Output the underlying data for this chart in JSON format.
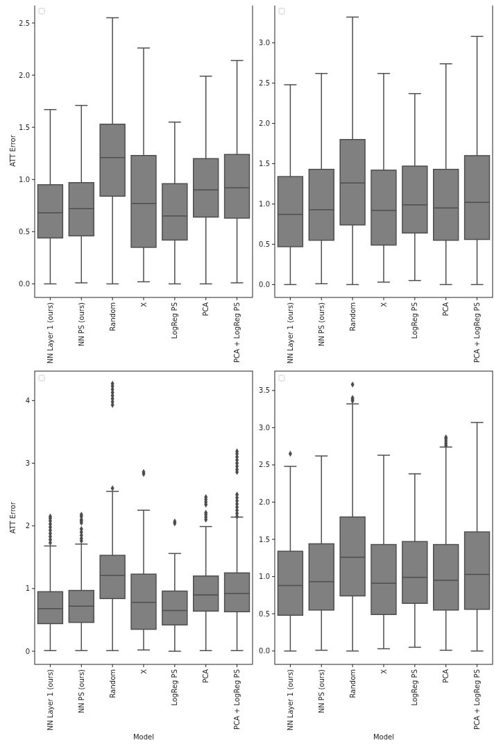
{
  "chart_data": [
    {
      "type": "box",
      "ylabel": "ATT Error",
      "categories": [
        "NN Layer 1 (ours)",
        "NN PS (ours)",
        "Random",
        "X",
        "LogReg PS",
        "PCA",
        "PCA + LogReg PS"
      ],
      "ylim": [
        -0.13,
        2.68
      ],
      "yticks": [
        {
          "value": 0,
          "label": "0.0"
        },
        {
          "value": 0.5,
          "label": "0.5"
        },
        {
          "value": 1,
          "label": "1.0"
        },
        {
          "value": 1.5,
          "label": "1.5"
        },
        {
          "value": 2,
          "label": "2.0"
        },
        {
          "value": 2.5,
          "label": "2.5"
        }
      ],
      "grid": false,
      "series": [
        {
          "color": "#808080",
          "boxes": [
            {
              "low": 0,
              "q1": 0.44,
              "median": 0.68,
              "q3": 0.95,
              "high": 1.67
            },
            {
              "low": 0.01,
              "q1": 0.46,
              "median": 0.72,
              "q3": 0.97,
              "high": 1.71
            },
            {
              "low": 0,
              "q1": 0.84,
              "median": 1.21,
              "q3": 1.53,
              "high": 2.55
            },
            {
              "low": 0.02,
              "q1": 0.35,
              "median": 0.77,
              "q3": 1.23,
              "high": 2.26
            },
            {
              "low": 0,
              "q1": 0.42,
              "median": 0.65,
              "q3": 0.96,
              "high": 1.55
            },
            {
              "low": 0,
              "q1": 0.64,
              "median": 0.9,
              "q3": 1.2,
              "high": 1.99
            },
            {
              "low": 0.01,
              "q1": 0.63,
              "median": 0.92,
              "q3": 1.24,
              "high": 2.14
            }
          ]
        }
      ]
    },
    {
      "type": "box",
      "categories": [
        "NN Layer 1 (ours)",
        "NN PS (ours)",
        "Random",
        "X",
        "LogReg PS",
        "PCA",
        "PCA + LogReg PS"
      ],
      "ylim": [
        -0.16,
        3.48
      ],
      "yticks": [
        {
          "value": 0,
          "label": "0.0"
        },
        {
          "value": 0.5,
          "label": "0.5"
        },
        {
          "value": 1,
          "label": "1.0"
        },
        {
          "value": 1.5,
          "label": "1.5"
        },
        {
          "value": 2,
          "label": "2.0"
        },
        {
          "value": 2.5,
          "label": "2.5"
        },
        {
          "value": 3,
          "label": "3.0"
        }
      ],
      "grid": false,
      "series": [
        {
          "color": "#808080",
          "boxes": [
            {
              "low": 0,
              "q1": 0.47,
              "median": 0.87,
              "q3": 1.34,
              "high": 2.48
            },
            {
              "low": 0.01,
              "q1": 0.55,
              "median": 0.93,
              "q3": 1.43,
              "high": 2.62
            },
            {
              "low": 0,
              "q1": 0.74,
              "median": 1.26,
              "q3": 1.8,
              "high": 3.32
            },
            {
              "low": 0.03,
              "q1": 0.49,
              "median": 0.92,
              "q3": 1.42,
              "high": 2.62
            },
            {
              "low": 0.05,
              "q1": 0.64,
              "median": 0.99,
              "q3": 1.47,
              "high": 2.37
            },
            {
              "low": 0,
              "q1": 0.55,
              "median": 0.95,
              "q3": 1.43,
              "high": 2.74
            },
            {
              "low": 0,
              "q1": 0.56,
              "median": 1.02,
              "q3": 1.6,
              "high": 3.08
            }
          ]
        }
      ]
    },
    {
      "type": "box",
      "ylabel": "ATT Error",
      "xlabel": "Model",
      "categories": [
        "NN Layer 1 (ours)",
        "NN PS (ours)",
        "Random",
        "X",
        "LogReg PS",
        "PCA",
        "PCA + LogReg PS"
      ],
      "ylim": [
        -0.21,
        4.47
      ],
      "yticks": [
        0,
        1,
        2,
        3,
        4
      ],
      "grid": false,
      "marker": "diamond",
      "series": [
        {
          "color": "#808080",
          "boxes": [
            {
              "low": 0.01,
              "q1": 0.44,
              "median": 0.68,
              "q3": 0.95,
              "high": 1.68,
              "outliers": [
                1.73,
                1.78,
                1.83,
                1.88,
                1.93,
                1.98,
                2.03,
                2.08,
                2.12,
                2.15
              ]
            },
            {
              "low": 0.01,
              "q1": 0.46,
              "median": 0.72,
              "q3": 0.97,
              "high": 1.71,
              "outliers": [
                1.76,
                1.8,
                1.85,
                1.9,
                1.95,
                2.05,
                2.08,
                2.1,
                2.15,
                2.18
              ]
            },
            {
              "low": 0.01,
              "q1": 0.84,
              "median": 1.21,
              "q3": 1.53,
              "high": 2.55,
              "outliers": [
                2.6,
                3.93,
                3.98,
                4.03,
                4.08,
                4.13,
                4.18,
                4.23,
                4.27
              ]
            },
            {
              "low": 0.02,
              "q1": 0.35,
              "median": 0.78,
              "q3": 1.23,
              "high": 2.25,
              "outliers": [
                2.83,
                2.86
              ]
            },
            {
              "low": 0,
              "q1": 0.42,
              "median": 0.65,
              "q3": 0.96,
              "high": 1.56,
              "outliers": [
                2.04,
                2.07
              ]
            },
            {
              "low": 0.01,
              "q1": 0.64,
              "median": 0.9,
              "q3": 1.2,
              "high": 1.99,
              "outliers": [
                2.1,
                2.14,
                2.18,
                2.21,
                2.34,
                2.38,
                2.42,
                2.46
              ]
            },
            {
              "low": 0.01,
              "q1": 0.63,
              "median": 0.92,
              "q3": 1.25,
              "high": 2.14,
              "outliers": [
                2.15,
                2.2,
                2.25,
                2.3,
                2.35,
                2.4,
                2.45,
                2.5,
                2.86,
                2.9,
                2.95,
                3.0,
                3.05,
                3.1,
                3.15,
                3.19
              ]
            }
          ]
        }
      ]
    },
    {
      "type": "box",
      "xlabel": "Model",
      "categories": [
        "NN Layer 1 (ours)",
        "NN PS (ours)",
        "Random",
        "X",
        "LogReg PS",
        "PCA",
        "PCA + LogReg PS"
      ],
      "ylim": [
        -0.18,
        3.76
      ],
      "yticks": [
        {
          "value": 0,
          "label": "0.0"
        },
        {
          "value": 0.5,
          "label": "0.5"
        },
        {
          "value": 1,
          "label": "1.0"
        },
        {
          "value": 1.5,
          "label": "1.5"
        },
        {
          "value": 2,
          "label": "2.0"
        },
        {
          "value": 2.5,
          "label": "2.5"
        },
        {
          "value": 3,
          "label": "3.0"
        },
        {
          "value": 3.5,
          "label": "3.5"
        }
      ],
      "grid": false,
      "marker": "diamond",
      "series": [
        {
          "color": "#808080",
          "boxes": [
            {
              "low": 0,
              "q1": 0.48,
              "median": 0.88,
              "q3": 1.34,
              "high": 2.48,
              "outliers": [
                2.65
              ]
            },
            {
              "low": 0.01,
              "q1": 0.55,
              "median": 0.93,
              "q3": 1.44,
              "high": 2.62
            },
            {
              "low": 0,
              "q1": 0.74,
              "median": 1.26,
              "q3": 1.8,
              "high": 3.32,
              "outliers": [
                3.36,
                3.38,
                3.4,
                3.58
              ]
            },
            {
              "low": 0.03,
              "q1": 0.49,
              "median": 0.91,
              "q3": 1.43,
              "high": 2.63
            },
            {
              "low": 0.05,
              "q1": 0.64,
              "median": 0.99,
              "q3": 1.47,
              "high": 2.38
            },
            {
              "low": 0.01,
              "q1": 0.55,
              "median": 0.95,
              "q3": 1.43,
              "high": 2.74,
              "outliers": [
                2.76,
                2.79,
                2.82,
                2.85,
                2.87
              ]
            },
            {
              "low": 0,
              "q1": 0.56,
              "median": 1.03,
              "q3": 1.6,
              "high": 3.07
            }
          ]
        }
      ]
    }
  ]
}
